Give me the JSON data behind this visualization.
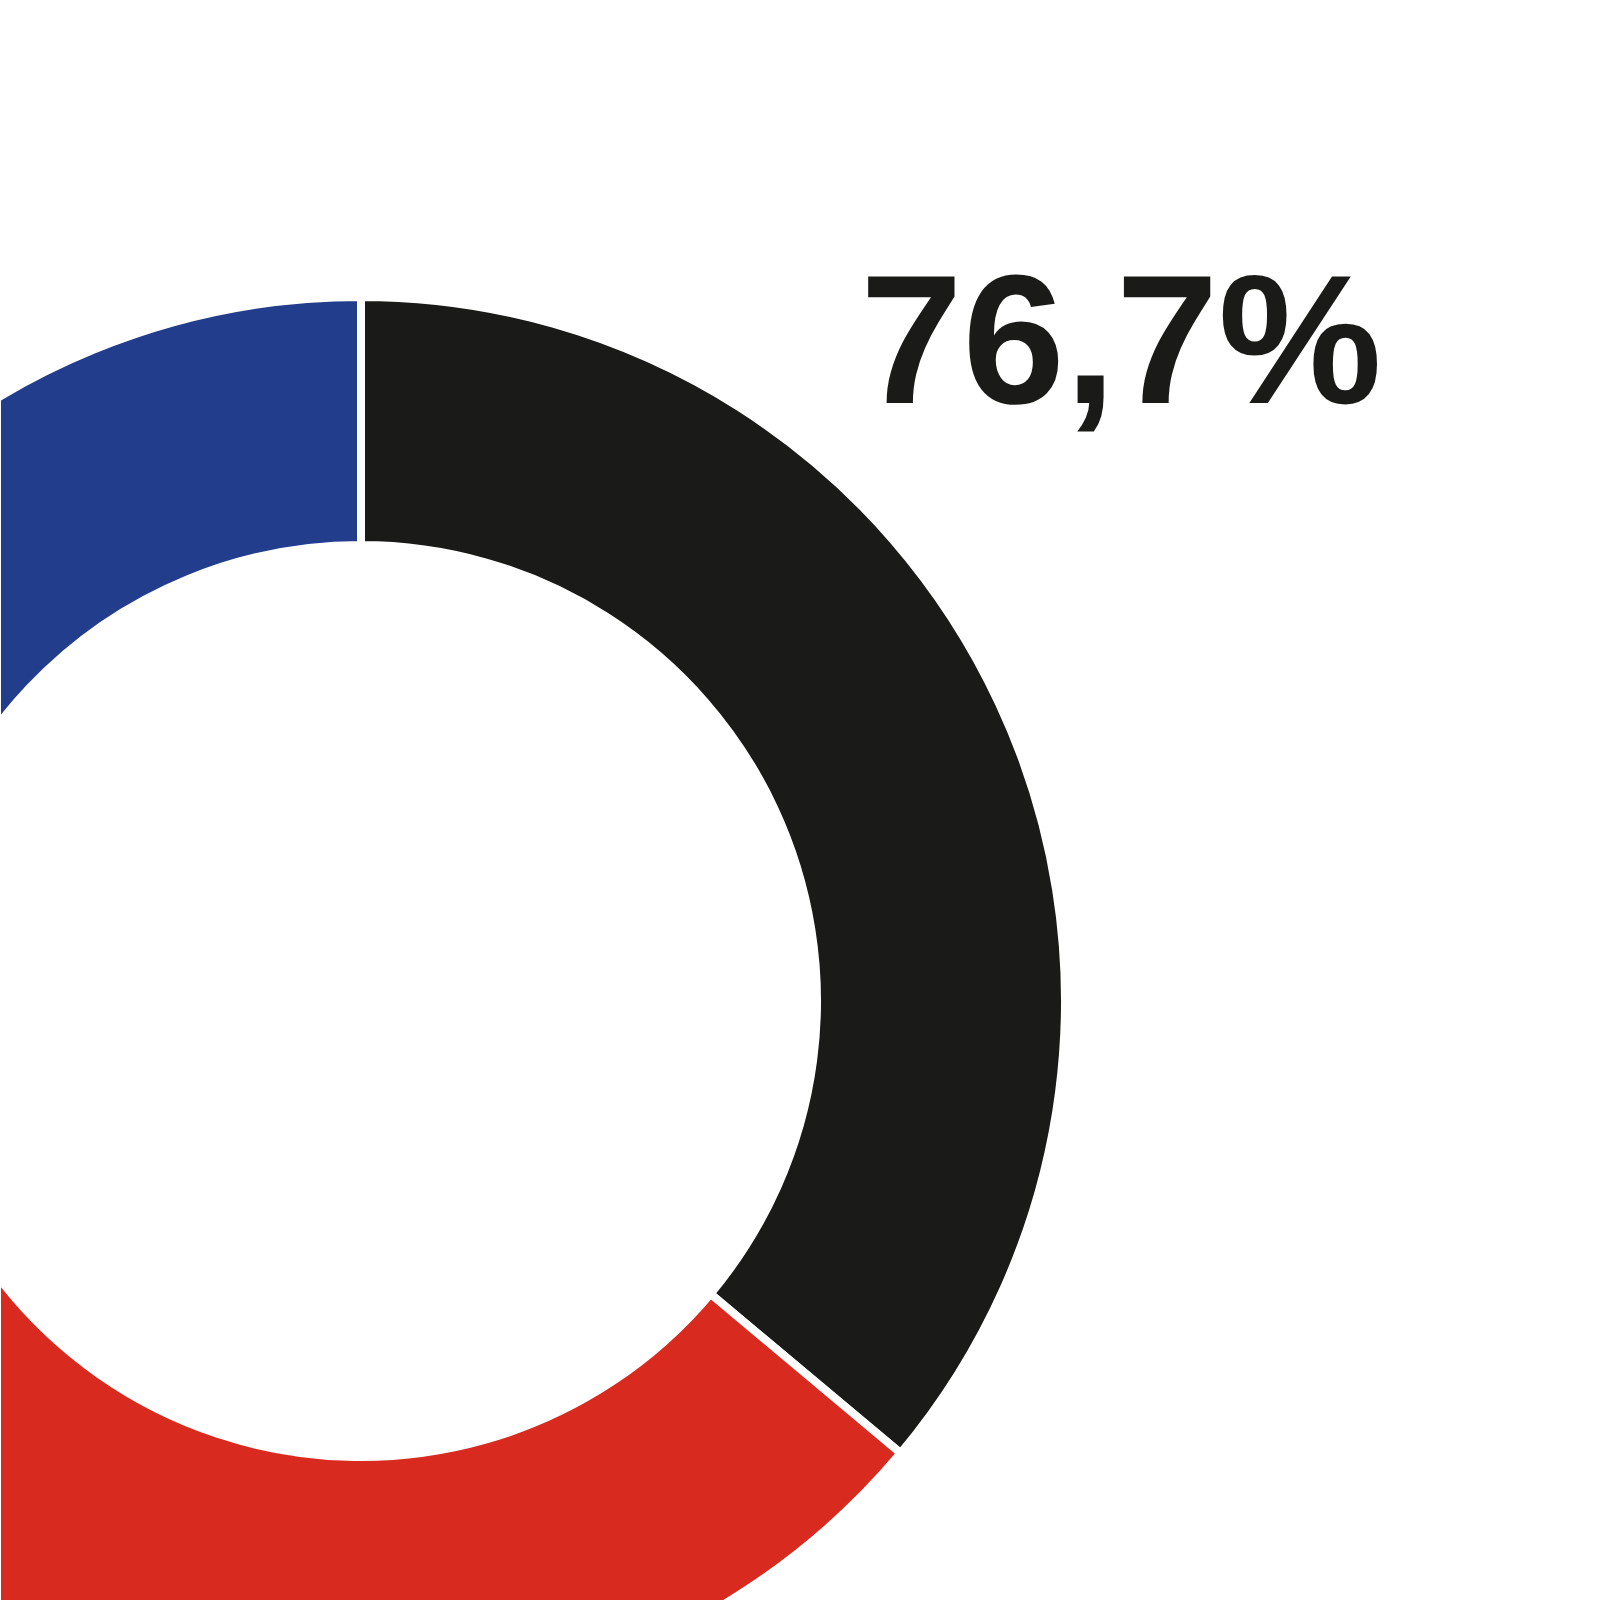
{
  "chart_data": {
    "type": "donut",
    "categories": [
      null,
      null,
      null
    ],
    "values": [
      36.1,
      38.0,
      25.9
    ],
    "colors": [
      "#1a1a18",
      "#d92a20",
      "#233d8d"
    ],
    "annotations": [
      "76,7%"
    ]
  }
}
